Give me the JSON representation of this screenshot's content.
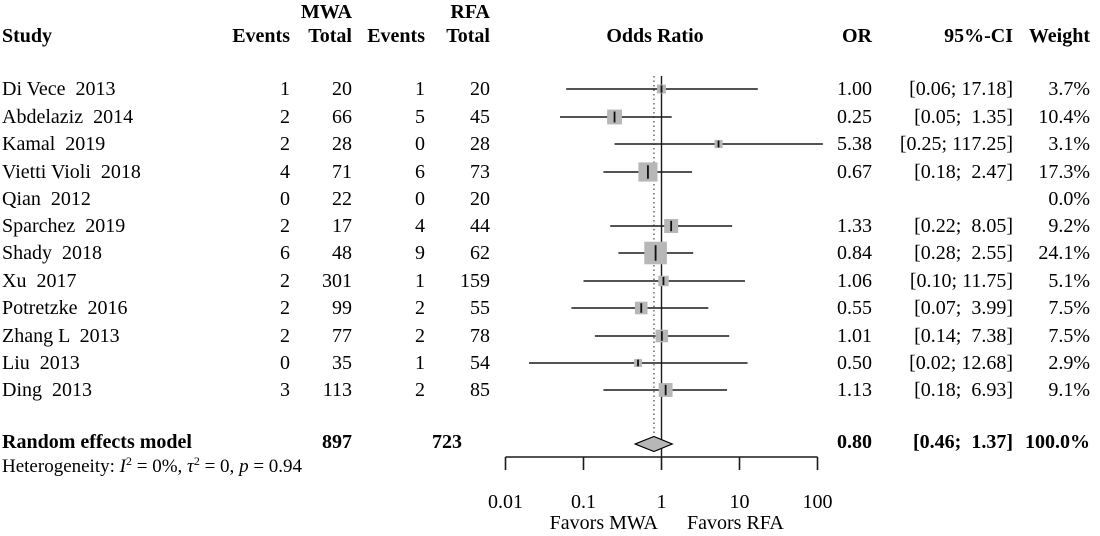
{
  "header": {
    "study": "Study",
    "group1": "MWA",
    "group2": "RFA",
    "events": "Events",
    "total": "Total",
    "plot_title": "Odds Ratio",
    "or": "OR",
    "ci": "95%-CI",
    "weight": "Weight"
  },
  "chart_data": {
    "type": "scatter",
    "subtype": "forest_plot_meta_analysis",
    "effect_measure": "Odds Ratio",
    "x_scale": "log",
    "xlim": [
      0.01,
      100
    ],
    "x_ticks": [
      0.01,
      0.1,
      1,
      10,
      100
    ],
    "x_tick_labels": [
      "0.01",
      "0.1",
      "1",
      "10",
      "100"
    ],
    "reference_line": 1.0,
    "favors_left": "Favors MWA",
    "favors_right": "Favors RFA",
    "marker_color": "#b7b7b7",
    "line_color": "#1a1a1a",
    "studies": [
      {
        "name": "Di Vece  2013",
        "mwa_events": "1",
        "mwa_total": "20",
        "rfa_events": "1",
        "rfa_total": "20",
        "or": 1.0,
        "ci_low": 0.06,
        "ci_high": 17.18,
        "weight": 3.7,
        "or_label": "1.00",
        "ci_label": "[0.06; 17.18]",
        "weight_label": "3.7%"
      },
      {
        "name": "Abdelaziz  2014",
        "mwa_events": "2",
        "mwa_total": "66",
        "rfa_events": "5",
        "rfa_total": "45",
        "or": 0.25,
        "ci_low": 0.05,
        "ci_high": 1.35,
        "weight": 10.4,
        "or_label": "0.25",
        "ci_label": "[0.05;  1.35]",
        "weight_label": "10.4%"
      },
      {
        "name": "Kamal  2019",
        "mwa_events": "2",
        "mwa_total": "28",
        "rfa_events": "0",
        "rfa_total": "28",
        "or": 5.38,
        "ci_low": 0.25,
        "ci_high": 117.25,
        "weight": 3.1,
        "or_label": "5.38",
        "ci_label": "[0.25; 117.25]",
        "weight_label": "3.1%"
      },
      {
        "name": "Vietti Violi  2018",
        "mwa_events": "4",
        "mwa_total": "71",
        "rfa_events": "6",
        "rfa_total": "73",
        "or": 0.67,
        "ci_low": 0.18,
        "ci_high": 2.47,
        "weight": 17.3,
        "or_label": "0.67",
        "ci_label": "[0.18;  2.47]",
        "weight_label": "17.3%"
      },
      {
        "name": "Qian  2012",
        "mwa_events": "0",
        "mwa_total": "22",
        "rfa_events": "0",
        "rfa_total": "20",
        "or": null,
        "ci_low": null,
        "ci_high": null,
        "weight": 0.0,
        "or_label": "",
        "ci_label": "",
        "weight_label": "0.0%"
      },
      {
        "name": "Sparchez  2019",
        "mwa_events": "2",
        "mwa_total": "17",
        "rfa_events": "4",
        "rfa_total": "44",
        "or": 1.33,
        "ci_low": 0.22,
        "ci_high": 8.05,
        "weight": 9.2,
        "or_label": "1.33",
        "ci_label": "[0.22;  8.05]",
        "weight_label": "9.2%"
      },
      {
        "name": "Shady  2018",
        "mwa_events": "6",
        "mwa_total": "48",
        "rfa_events": "9",
        "rfa_total": "62",
        "or": 0.84,
        "ci_low": 0.28,
        "ci_high": 2.55,
        "weight": 24.1,
        "or_label": "0.84",
        "ci_label": "[0.28;  2.55]",
        "weight_label": "24.1%"
      },
      {
        "name": "Xu  2017",
        "mwa_events": "2",
        "mwa_total": "301",
        "rfa_events": "1",
        "rfa_total": "159",
        "or": 1.06,
        "ci_low": 0.1,
        "ci_high": 11.75,
        "weight": 5.1,
        "or_label": "1.06",
        "ci_label": "[0.10; 11.75]",
        "weight_label": "5.1%"
      },
      {
        "name": "Potretzke  2016",
        "mwa_events": "2",
        "mwa_total": "99",
        "rfa_events": "2",
        "rfa_total": "55",
        "or": 0.55,
        "ci_low": 0.07,
        "ci_high": 3.99,
        "weight": 7.5,
        "or_label": "0.55",
        "ci_label": "[0.07;  3.99]",
        "weight_label": "7.5%"
      },
      {
        "name": "Zhang L  2013",
        "mwa_events": "2",
        "mwa_total": "77",
        "rfa_events": "2",
        "rfa_total": "78",
        "or": 1.01,
        "ci_low": 0.14,
        "ci_high": 7.38,
        "weight": 7.5,
        "or_label": "1.01",
        "ci_label": "[0.14;  7.38]",
        "weight_label": "7.5%"
      },
      {
        "name": "Liu  2013",
        "mwa_events": "0",
        "mwa_total": "35",
        "rfa_events": "1",
        "rfa_total": "54",
        "or": 0.5,
        "ci_low": 0.02,
        "ci_high": 12.68,
        "weight": 2.9,
        "or_label": "0.50",
        "ci_label": "[0.02; 12.68]",
        "weight_label": "2.9%"
      },
      {
        "name": "Ding  2013",
        "mwa_events": "3",
        "mwa_total": "113",
        "rfa_events": "2",
        "rfa_total": "85",
        "or": 1.13,
        "ci_low": 0.18,
        "ci_high": 6.93,
        "weight": 9.1,
        "or_label": "1.13",
        "ci_label": "[0.18;  6.93]",
        "weight_label": "9.1%"
      }
    ],
    "pooled": {
      "label": "Random effects model",
      "mwa_total": "897",
      "rfa_total": "723",
      "or": 0.8,
      "ci_low": 0.46,
      "ci_high": 1.37,
      "weight": 100.0,
      "or_label": "0.80",
      "ci_label": "[0.46;  1.37]",
      "weight_label": "100.0%"
    },
    "heterogeneity": {
      "prefix": "Heterogeneity: ",
      "parts": [
        {
          "text": "I",
          "italic": true
        },
        {
          "text": "2",
          "sup": true
        },
        {
          "text": " = 0%, "
        },
        {
          "text": "τ",
          "italic": true
        },
        {
          "text": "2",
          "sup": true
        },
        {
          "text": " = 0, "
        },
        {
          "text": "p",
          "italic": true
        },
        {
          "text": " = 0.94"
        }
      ]
    }
  }
}
